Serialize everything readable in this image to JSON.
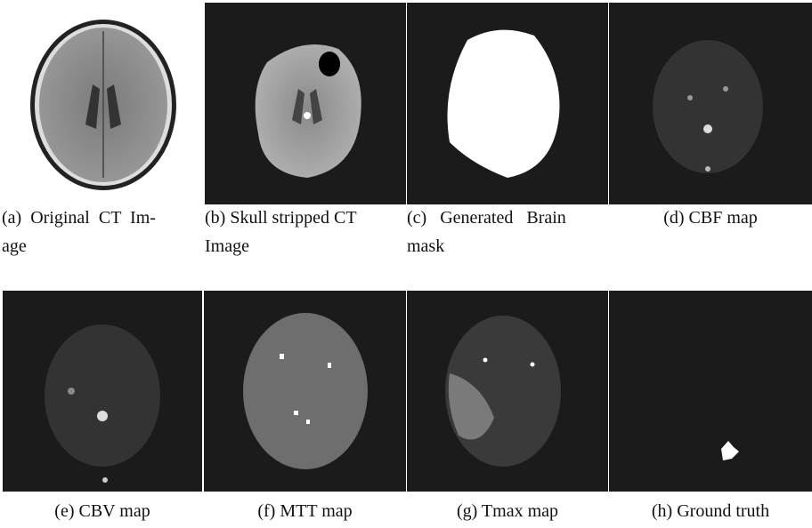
{
  "figure": {
    "panels": [
      {
        "caption_lines": [
          "(a)  Original  CT  Im-",
          "age"
        ]
      },
      {
        "caption_lines": [
          "(b) Skull stripped CT",
          "Image"
        ]
      },
      {
        "caption_lines": [
          "(c)   Generated   Brain",
          "mask"
        ]
      },
      {
        "caption_lines": [
          "(d) CBF map"
        ]
      },
      {
        "caption_lines": [
          "(e) CBV map"
        ]
      },
      {
        "caption_lines": [
          "(f) MTT map"
        ]
      },
      {
        "caption_lines": [
          "(g) Tmax map"
        ]
      },
      {
        "caption_lines": [
          "(h) Ground truth"
        ]
      }
    ]
  }
}
